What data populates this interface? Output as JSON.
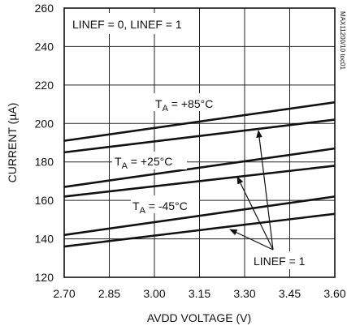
{
  "chart_data": {
    "type": "line",
    "title": "",
    "xlabel": "AVDD VOLTAGE (V)",
    "ylabel": "CURRENT (µA)",
    "xlim": [
      2.7,
      3.6
    ],
    "ylim": [
      120,
      260
    ],
    "x_ticks": [
      "2.70",
      "2.85",
      "3.00",
      "3.15",
      "3.30",
      "3.45",
      "3.60"
    ],
    "y_ticks": [
      "120",
      "140",
      "160",
      "180",
      "200",
      "220",
      "240",
      "260"
    ],
    "grid": true,
    "legend": "none",
    "series": [
      {
        "x": [
          2.7,
          3.6
        ],
        "y": [
          191,
          211
        ]
      },
      {
        "x": [
          2.7,
          3.6
        ],
        "y": [
          185,
          202
        ]
      },
      {
        "x": [
          2.7,
          3.6
        ],
        "y": [
          167,
          187
        ]
      },
      {
        "x": [
          2.7,
          3.6
        ],
        "y": [
          162,
          178
        ]
      },
      {
        "x": [
          2.7,
          3.6
        ],
        "y": [
          142,
          162
        ]
      },
      {
        "x": [
          2.7,
          3.6
        ],
        "y": [
          136,
          153
        ]
      }
    ],
    "condition_label": "LINEF = 0, LINEF = 1",
    "temperature_labels": [
      {
        "main": "T",
        "sub": "A",
        "rest": " = +85°C"
      },
      {
        "main": "T",
        "sub": "A",
        "rest": " = +25°C"
      },
      {
        "main": "T",
        "sub": "A",
        "rest": " = -45°C"
      }
    ],
    "linef_callout": "LINEF = 1",
    "figure_id": "MAX11200/10 toc01"
  }
}
